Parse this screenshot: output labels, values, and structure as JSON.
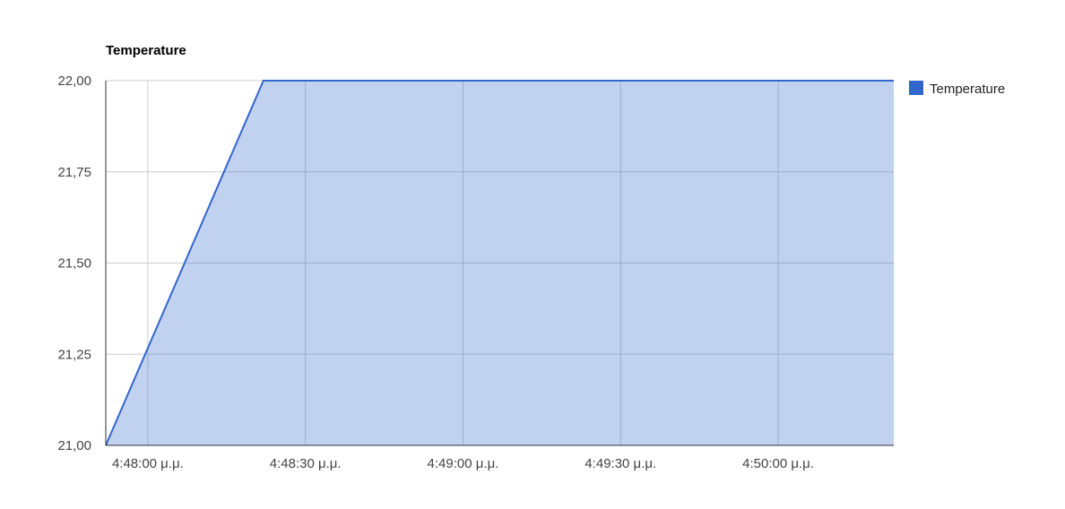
{
  "chart_data": {
    "type": "area",
    "title": "Temperature",
    "xlabel": "",
    "ylabel": "",
    "y_tick_labels": [
      "21,00",
      "21,25",
      "21,50",
      "21,75",
      "22,00"
    ],
    "y_ticks": [
      21.0,
      21.25,
      21.5,
      21.75,
      22.0
    ],
    "ylim": [
      21.0,
      22.0
    ],
    "x_tick_labels": [
      "4:48:00 μ.μ.",
      "4:48:30 μ.μ.",
      "4:49:00 μ.μ.",
      "4:49:30 μ.μ.",
      "4:50:00 μ.μ."
    ],
    "x_ticks": [
      "16:48:00",
      "16:48:30",
      "16:49:00",
      "16:49:30",
      "16:50:00"
    ],
    "xlim": [
      "16:47:52",
      "16:50:22"
    ],
    "grid": true,
    "legend_position": "right",
    "series": [
      {
        "name": "Temperature",
        "color": "#3366cc",
        "fill_color": "#c2d1f0",
        "x": [
          "16:47:52",
          "16:48:22",
          "16:50:22"
        ],
        "values": [
          21.0,
          22.0,
          22.0
        ]
      }
    ]
  }
}
